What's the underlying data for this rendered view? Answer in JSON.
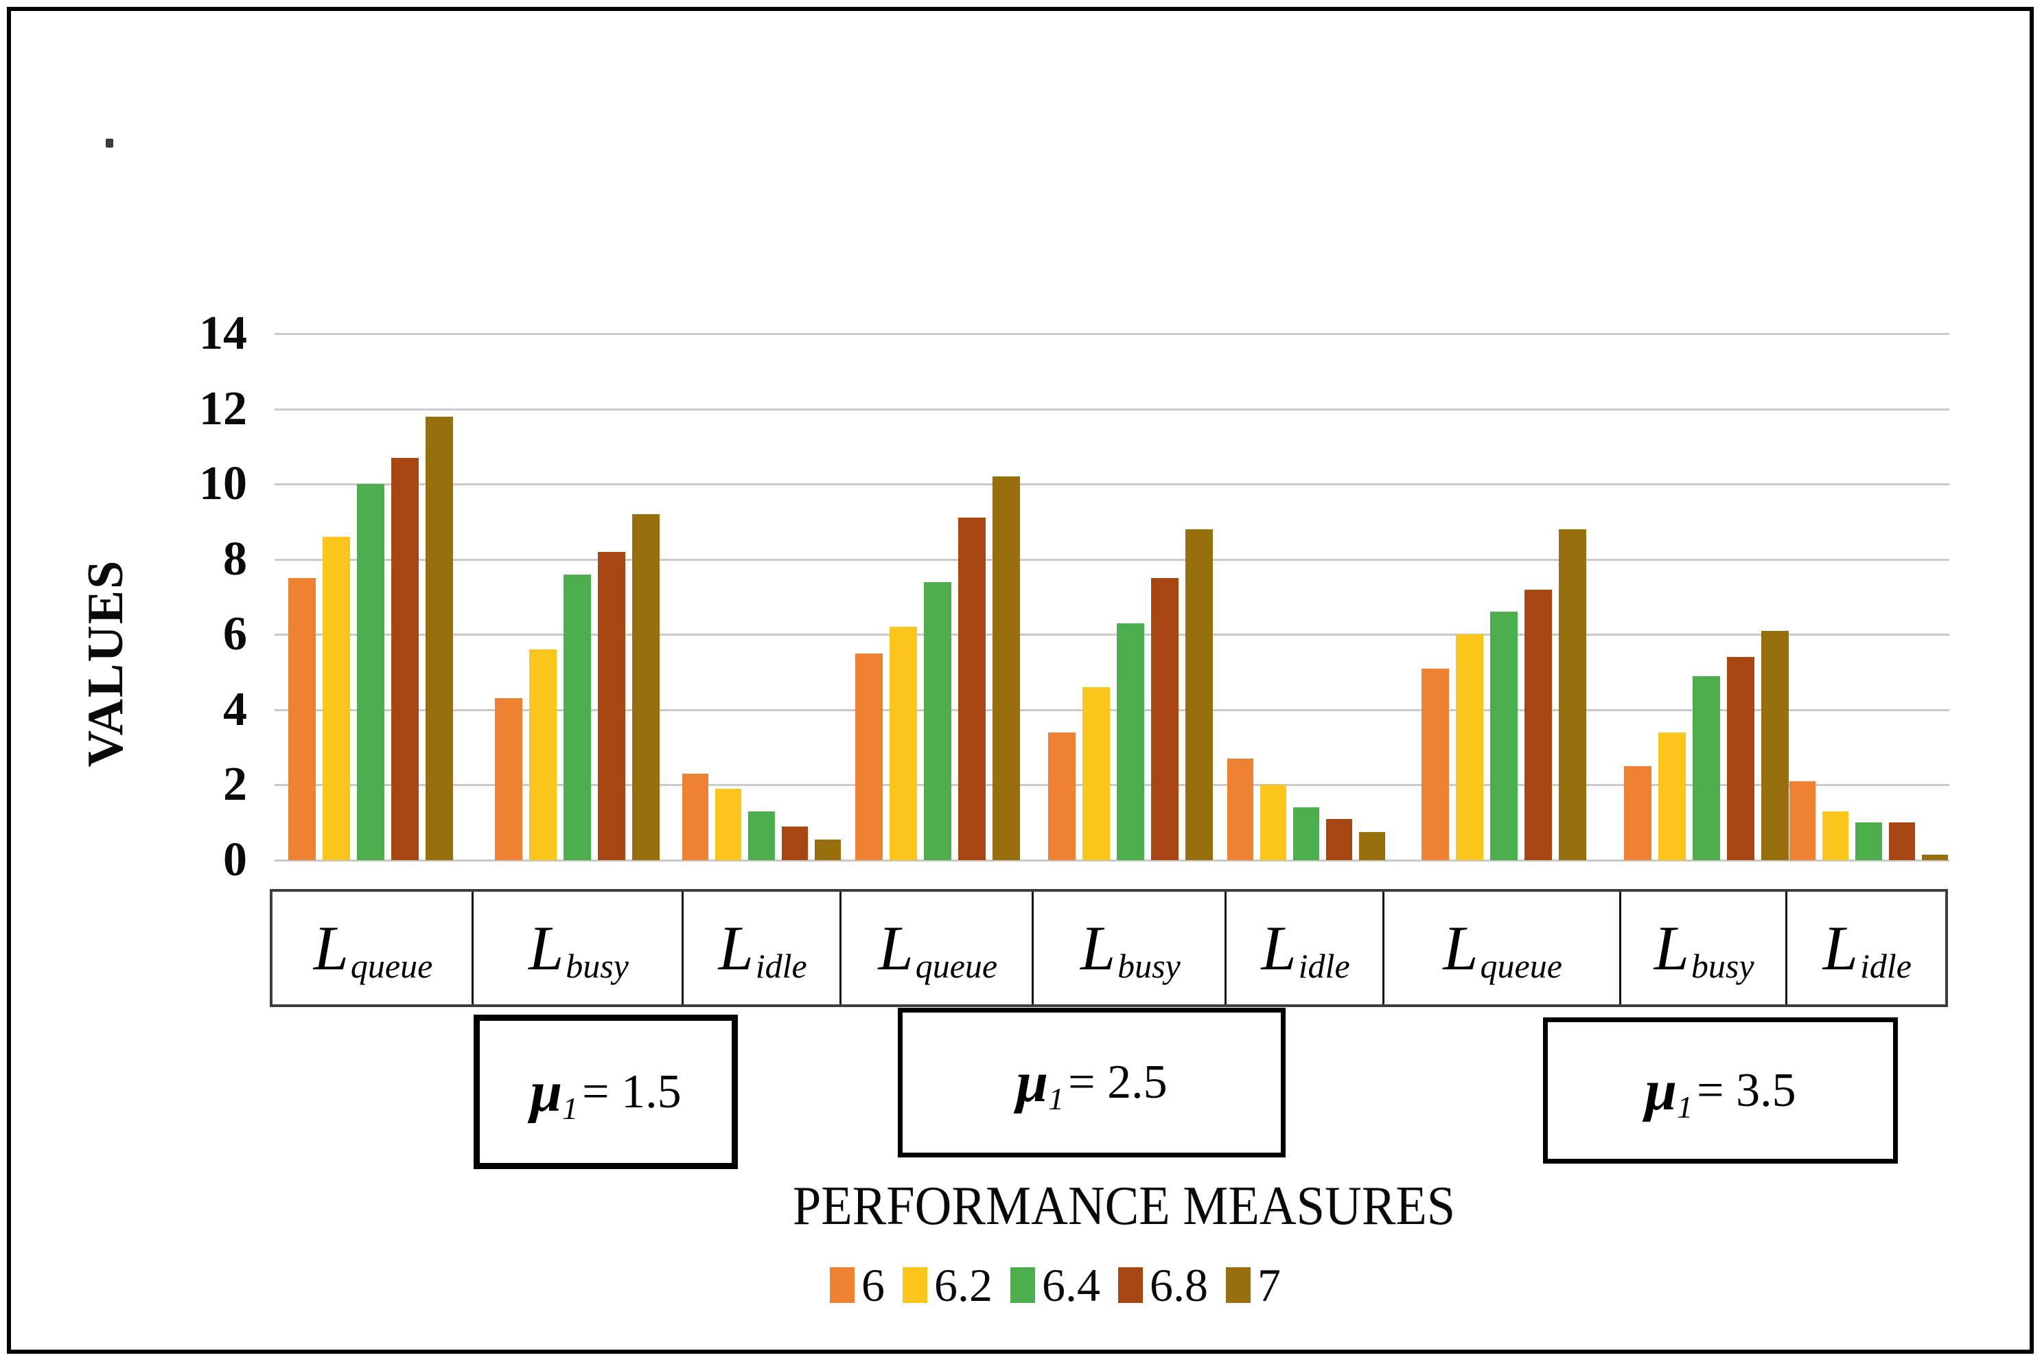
{
  "chart_data": {
    "type": "bar",
    "title": "",
    "xlabel": "PERFORMANCE MEASURES",
    "ylabel": "VALUES",
    "ylim": [
      0,
      14
    ],
    "yticks": [
      0,
      2,
      4,
      6,
      8,
      10,
      12,
      14
    ],
    "grid": true,
    "legend_position": "bottom",
    "series": [
      {
        "name": "6",
        "color": "#EF8133"
      },
      {
        "name": "6.2",
        "color": "#FBC51C"
      },
      {
        "name": "6.4",
        "color": "#4CAE4C"
      },
      {
        "name": "6.8",
        "color": "#A84713"
      },
      {
        "name": "7",
        "color": "#97700D"
      }
    ],
    "groups": [
      {
        "group_label": {
          "symbol": "μ",
          "sub": "1",
          "value": "= 1.5"
        },
        "clusters": [
          {
            "measure_base": "L",
            "measure_sub": "queue",
            "values": [
              7.5,
              8.6,
              10.0,
              10.7,
              11.8
            ]
          },
          {
            "measure_base": "L",
            "measure_sub": "busy",
            "values": [
              4.3,
              5.6,
              7.6,
              8.2,
              9.2
            ]
          },
          {
            "measure_base": "L",
            "measure_sub": "idle",
            "values": [
              2.3,
              1.9,
              1.3,
              0.9,
              0.55
            ]
          }
        ]
      },
      {
        "group_label": {
          "symbol": "μ",
          "sub": "1",
          "value": "= 2.5"
        },
        "clusters": [
          {
            "measure_base": "L",
            "measure_sub": "queue",
            "values": [
              5.5,
              6.2,
              7.4,
              9.1,
              10.2
            ]
          },
          {
            "measure_base": "L",
            "measure_sub": "busy",
            "values": [
              3.4,
              4.6,
              6.3,
              7.5,
              8.8
            ]
          },
          {
            "measure_base": "L",
            "measure_sub": "idle",
            "values": [
              2.7,
              2.0,
              1.4,
              1.1,
              0.75
            ]
          }
        ]
      },
      {
        "group_label": {
          "symbol": "μ",
          "sub": "1",
          "value": "= 3.5"
        },
        "clusters": [
          {
            "measure_base": "L",
            "measure_sub": "queue",
            "values": [
              5.1,
              6.0,
              6.6,
              7.2,
              8.8
            ]
          },
          {
            "measure_base": "L",
            "measure_sub": "busy",
            "values": [
              2.5,
              3.4,
              4.9,
              5.4,
              6.1
            ]
          },
          {
            "measure_base": "L",
            "measure_sub": "idle",
            "values": [
              2.1,
              1.3,
              1.0,
              1.0,
              0.15
            ]
          }
        ]
      }
    ]
  }
}
